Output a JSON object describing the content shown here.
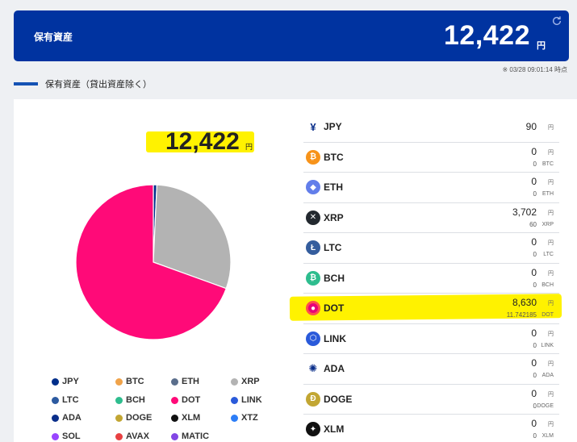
{
  "header": {
    "title": "保有資産",
    "amount": "12,422",
    "unit": "円"
  },
  "timestamp": "※ 03/28 09:01:14 時点",
  "section": {
    "title": "保有資産（貸出資産除く）"
  },
  "total": {
    "amount": "12,422",
    "unit": "円"
  },
  "chart_data": {
    "type": "pie",
    "title": "",
    "slices": [
      {
        "label": "JPY",
        "value": 90,
        "color": "#002e8a"
      },
      {
        "label": "XRP",
        "value": 3702,
        "color": "#b3b3b3"
      },
      {
        "label": "DOT",
        "value": 8630,
        "color": "#ff0a78"
      }
    ]
  },
  "legend": [
    {
      "label": "JPY",
      "color": "#002e8a"
    },
    {
      "label": "BTC",
      "color": "#f0a34a"
    },
    {
      "label": "ETH",
      "color": "#5a6e8c"
    },
    {
      "label": "XRP",
      "color": "#b3b3b3"
    },
    {
      "label": "LTC",
      "color": "#2c5aa0"
    },
    {
      "label": "BCH",
      "color": "#2ebd8e"
    },
    {
      "label": "DOT",
      "color": "#ff0a78"
    },
    {
      "label": "LINK",
      "color": "#2a5ada"
    },
    {
      "label": "ADA",
      "color": "#0a2e8a"
    },
    {
      "label": "DOGE",
      "color": "#c2a633"
    },
    {
      "label": "XLM",
      "color": "#111111"
    },
    {
      "label": "XTZ",
      "color": "#2c7df7"
    },
    {
      "label": "SOL",
      "color": "#9945ff"
    },
    {
      "label": "AVAX",
      "color": "#e84142"
    },
    {
      "label": "MATIC",
      "color": "#8247e5"
    }
  ],
  "coins": [
    {
      "name": "JPY",
      "icon": "yen-icon",
      "jpy": "90",
      "jpy_unit": "円",
      "qty": "",
      "qty_unit": "",
      "color": "#ffffff",
      "glyph": "¥"
    },
    {
      "name": "BTC",
      "icon": "bitcoin-icon",
      "jpy": "0",
      "jpy_unit": "円",
      "qty": "0",
      "qty_unit": "BTC",
      "color": "#f7931a",
      "glyph": "₿"
    },
    {
      "name": "ETH",
      "icon": "ethereum-icon",
      "jpy": "0",
      "jpy_unit": "円",
      "qty": "0",
      "qty_unit": "ETH",
      "color": "#627eea",
      "glyph": "◆"
    },
    {
      "name": "XRP",
      "icon": "xrp-icon",
      "jpy": "3,702",
      "jpy_unit": "円",
      "qty": "60",
      "qty_unit": "XRP",
      "color": "#23292f",
      "glyph": "✕"
    },
    {
      "name": "LTC",
      "icon": "litecoin-icon",
      "jpy": "0",
      "jpy_unit": "円",
      "qty": "0",
      "qty_unit": "LTC",
      "color": "#345d9d",
      "glyph": "Ł"
    },
    {
      "name": "BCH",
      "icon": "bitcoin-cash-icon",
      "jpy": "0",
      "jpy_unit": "円",
      "qty": "0",
      "qty_unit": "BCH",
      "color": "#2ebd8e",
      "glyph": "₿"
    },
    {
      "name": "DOT",
      "icon": "polkadot-icon",
      "jpy": "8,630",
      "jpy_unit": "円",
      "qty": "11.742185",
      "qty_unit": "DOT",
      "color": "#e6007a",
      "glyph": "●"
    },
    {
      "name": "LINK",
      "icon": "chainlink-icon",
      "jpy": "0",
      "jpy_unit": "円",
      "qty": "0",
      "qty_unit": "LINK",
      "color": "#2a5ada",
      "glyph": "⬡"
    },
    {
      "name": "ADA",
      "icon": "cardano-icon",
      "jpy": "0",
      "jpy_unit": "円",
      "qty": "0",
      "qty_unit": "ADA",
      "color": "#ffffff",
      "glyph": "✺"
    },
    {
      "name": "DOGE",
      "icon": "dogecoin-icon",
      "jpy": "0",
      "jpy_unit": "円",
      "qty": "0",
      "qty_unit": "DOGE",
      "color": "#c2a633",
      "glyph": "Ð"
    },
    {
      "name": "XLM",
      "icon": "stellar-icon",
      "jpy": "0",
      "jpy_unit": "円",
      "qty": "0",
      "qty_unit": "XLM",
      "color": "#111111",
      "glyph": "✦"
    }
  ]
}
